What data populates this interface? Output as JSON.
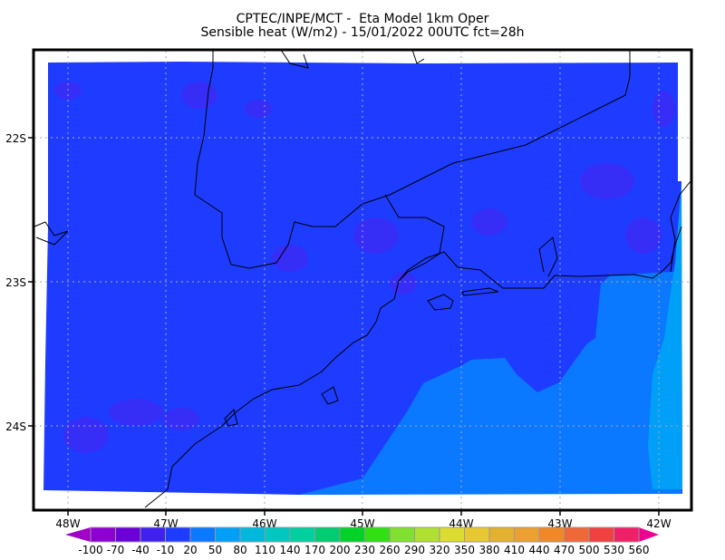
{
  "title_line1": "CPTEC/INPE/MCT -  Eta Model 1km Oper",
  "title_line2": "Sensible heat (W/m2) - 15/01/2022 00UTC fct=28h",
  "map": {
    "lon_labels": [
      "48W",
      "47W",
      "46W",
      "45W",
      "44W",
      "43W",
      "42W"
    ],
    "lat_labels": [
      "22S",
      "23S",
      "24S"
    ],
    "field_colors": {
      "land": "#1e3cff",
      "land_patches": "#4a20f0",
      "ocean_near": "#0a78ff",
      "ocean_far": "#00a0f8"
    }
  },
  "colorbar": {
    "labels": [
      "-100",
      "-70",
      "-40",
      "-10",
      "20",
      "50",
      "80",
      "110",
      "140",
      "170",
      "200",
      "230",
      "260",
      "290",
      "320",
      "350",
      "380",
      "410",
      "440",
      "470",
      "500",
      "530",
      "560"
    ],
    "colors": [
      "#8c00d4",
      "#6c00d8",
      "#4020f0",
      "#1e3cff",
      "#0a78ff",
      "#00a0f8",
      "#00b8dc",
      "#00c8c0",
      "#00d0a0",
      "#00cc70",
      "#00d228",
      "#30e010",
      "#80e030",
      "#b0e030",
      "#dcdc30",
      "#e8c830",
      "#e4b030",
      "#eca030",
      "#f08828",
      "#f06838",
      "#f04040",
      "#f02068"
    ],
    "under_color": "#a000c8",
    "over_color": "#f00090"
  }
}
